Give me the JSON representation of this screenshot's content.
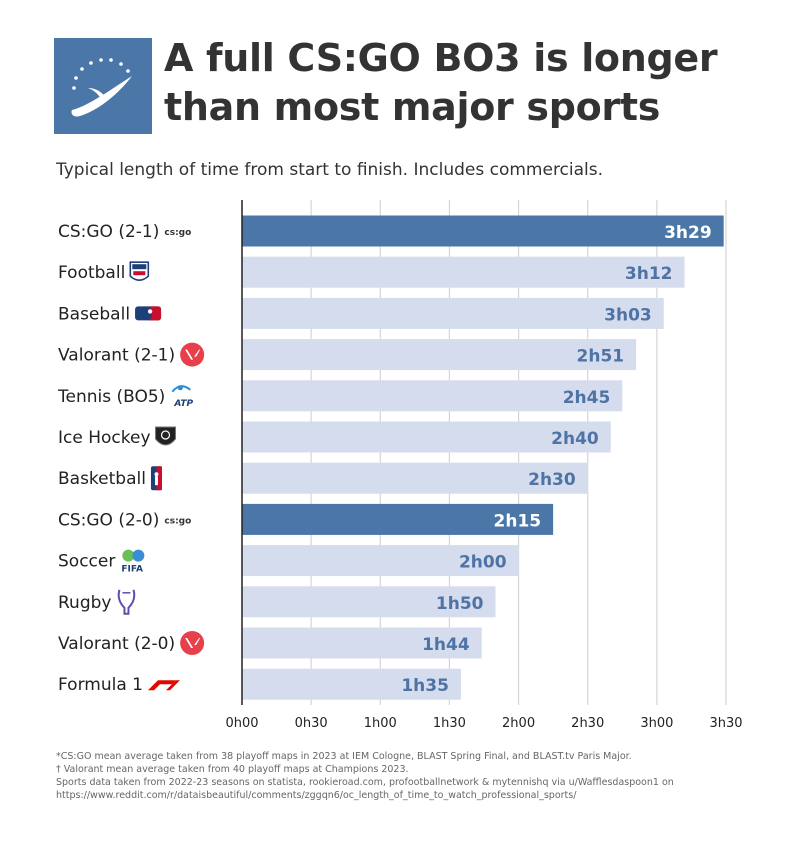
{
  "header": {
    "title": "A full CS:GO BO3 is longer than most major sports",
    "subtitle": "Typical length of time from start to finish. Includes commercials."
  },
  "colors": {
    "highlight": "#4a76a8",
    "default_bar": "#d4dced",
    "highlight_text": "#ffffff",
    "default_text": "#4e73a4",
    "logo_bg": "#4a76a8"
  },
  "chart_data": {
    "type": "bar",
    "orientation": "horizontal",
    "unit": "minutes",
    "categories": [
      "CS:GO (2-1)",
      "Football",
      "Baseball",
      "Valorant (2-1)",
      "Tennis (BO5)",
      "Ice Hockey",
      "Basketball",
      "CS:GO (2-0)",
      "Soccer",
      "Rugby",
      "Valorant (2-0)",
      "Formula 1"
    ],
    "values": [
      209,
      192,
      183,
      171,
      165,
      160,
      150,
      135,
      120,
      110,
      104,
      95
    ],
    "value_labels": [
      "3h29",
      "3h12",
      "3h03",
      "2h51",
      "2h45",
      "2h40",
      "2h30",
      "2h15",
      "2h00",
      "1h50",
      "1h44",
      "1h35"
    ],
    "highlighted": [
      true,
      false,
      false,
      false,
      false,
      false,
      false,
      true,
      false,
      false,
      false,
      false
    ],
    "icons": [
      "csgo-icon",
      "nfl-icon",
      "mlb-icon",
      "valorant-icon",
      "atp-icon",
      "nhl-icon",
      "nba-icon",
      "csgo-icon",
      "fifa-icon",
      "rugby-icon",
      "valorant-icon",
      "f1-icon"
    ],
    "x_ticks": [
      0,
      30,
      60,
      90,
      120,
      150,
      180,
      210
    ],
    "x_tick_labels": [
      "0h00",
      "0h30",
      "1h00",
      "1h30",
      "2h00",
      "2h30",
      "3h00",
      "3h30"
    ],
    "xlim": [
      0,
      210
    ],
    "grid": true,
    "legend": "none"
  },
  "footnotes": [
    "*CS:GO mean average taken from 38 playoff maps in 2023 at IEM Cologne, BLAST Spring Final, and BLAST.tv Paris Major.",
    "† Valorant mean average taken from 40 playoff maps at Champions 2023.",
    "Sports data taken from 2022-23 seasons on statista, rookieroad.com, profootballnetwork & mytennishq via u/Wafflesdaspoon1 on",
    "https://www.reddit.com/r/dataisbeautiful/comments/zggqn6/oc_length_of_time_to_watch_professional_sports/"
  ]
}
